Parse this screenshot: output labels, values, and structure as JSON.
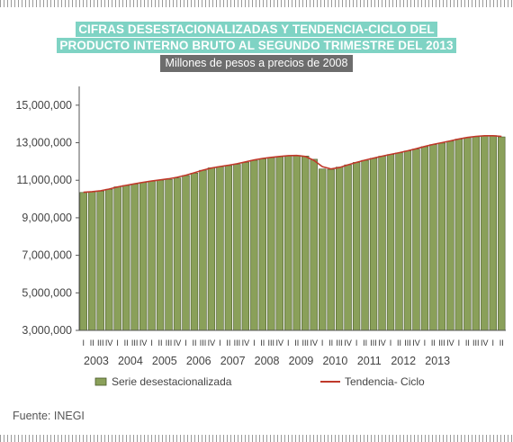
{
  "title_line1": "CIFRAS DESESTACIONALIZADAS Y TENDENCIA-CICLO DEL",
  "title_line2": "PRODUCTO INTERNO BRUTO AL SEGUNDO TRIMESTRE DEL 2013",
  "subtitle": "Millones de pesos a precios de 2008",
  "source": "Fuente: INEGI",
  "colors": {
    "bar": "#8aa05a",
    "bar_stroke": "#4a5a2a",
    "trend": "#c0392b",
    "title_bg": "#7fd3c4",
    "subtitle_bg": "#6d6d6d"
  },
  "chart_data": {
    "type": "bar",
    "title": "CIFRAS DESESTACIONALIZADAS Y TENDENCIA-CICLO DEL PRODUCTO INTERNO BRUTO AL SEGUNDO TRIMESTRE DEL 2013",
    "subtitle": "Millones de pesos a precios de 2008",
    "ylim": [
      3000000,
      16000000
    ],
    "yticks": [
      "3,000,000",
      "5,000,000",
      "7,000,000",
      "9,000,000",
      "11,000,000",
      "13,000,000",
      "15,000,000"
    ],
    "ytick_values": [
      3000000,
      5000000,
      7000000,
      9000000,
      11000000,
      13000000,
      15000000
    ],
    "quarter_labels": [
      "I",
      "II",
      "III",
      "IV"
    ],
    "years": [
      "2003",
      "2004",
      "2005",
      "2006",
      "2007",
      "2008",
      "2009",
      "2010",
      "2011",
      "2012",
      "2013"
    ],
    "legend": [
      "Serie desestacionalizada",
      "Tendencia- Ciclo"
    ],
    "grid": false,
    "series": [
      {
        "name": "Serie desestacionalizada",
        "type": "bar",
        "values": [
          10350000,
          10380000,
          10420000,
          10520000,
          10650000,
          10720000,
          10800000,
          10880000,
          10950000,
          11000000,
          11050000,
          11120000,
          11250000,
          11380000,
          11530000,
          11660000,
          11720000,
          11780000,
          11850000,
          11950000,
          12060000,
          12140000,
          12200000,
          12260000,
          12300000,
          12320000,
          12290000,
          12120000,
          11600000,
          11580000,
          11700000,
          11820000,
          11950000,
          12060000,
          12170000,
          12280000,
          12370000,
          12460000,
          12560000,
          12660000,
          12790000,
          12900000,
          12980000,
          13080000,
          13190000,
          13270000,
          13320000,
          13360000,
          13380000,
          13310000
        ]
      },
      {
        "name": "Tendencia- Ciclo",
        "type": "line",
        "values": [
          10360000,
          10390000,
          10440000,
          10530000,
          10640000,
          10730000,
          10810000,
          10890000,
          10960000,
          11020000,
          11080000,
          11160000,
          11270000,
          11400000,
          11540000,
          11650000,
          11730000,
          11800000,
          11880000,
          11980000,
          12080000,
          12160000,
          12220000,
          12270000,
          12310000,
          12320000,
          12270000,
          12060000,
          11720000,
          11600000,
          11680000,
          11820000,
          11950000,
          12070000,
          12180000,
          12280000,
          12380000,
          12470000,
          12570000,
          12680000,
          12800000,
          12910000,
          13000000,
          13100000,
          13200000,
          13280000,
          13340000,
          13370000,
          13370000,
          13340000
        ]
      }
    ]
  }
}
